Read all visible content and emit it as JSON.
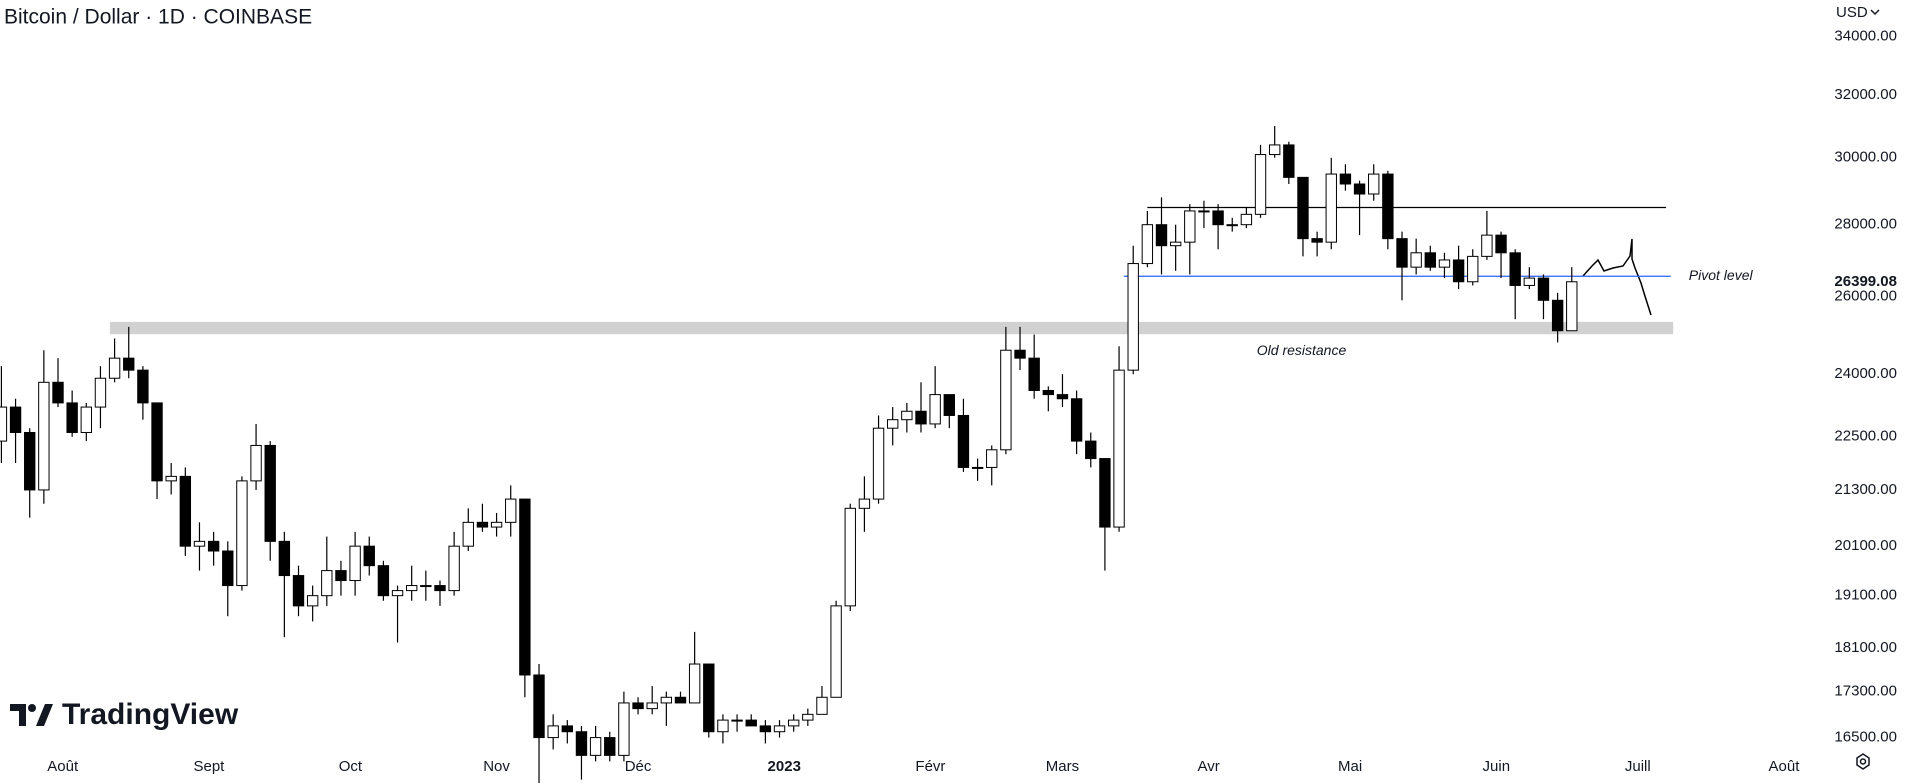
{
  "header": {
    "title": "Bitcoin / Dollar · 1D · COINBASE",
    "currency": "USD"
  },
  "brand": "TradingView",
  "chart_data": {
    "type": "candlestick",
    "log_scale": true,
    "up_color": "#ffffff",
    "down_color": "#000000",
    "wick_color": "#000000",
    "x": [
      0,
      3,
      6,
      9,
      12,
      15,
      18,
      21,
      24,
      27,
      30,
      33,
      36,
      39,
      42,
      45,
      48,
      51,
      54,
      57,
      60,
      63,
      66,
      69,
      72,
      75,
      78,
      81,
      84,
      87,
      90,
      93,
      96,
      99,
      102,
      105,
      108,
      111,
      114,
      117,
      120,
      123,
      126,
      129,
      132,
      135,
      138,
      141,
      144,
      147,
      150,
      153,
      156,
      159,
      162,
      165,
      168,
      171,
      174,
      177,
      180,
      183,
      186,
      189,
      192,
      195,
      198,
      201,
      204,
      207,
      210,
      213,
      216,
      219,
      222,
      225,
      228,
      231,
      234,
      237,
      240,
      243,
      246,
      249,
      252,
      255,
      258,
      261,
      264,
      267,
      270,
      273,
      276,
      279,
      282,
      285,
      288,
      291,
      294,
      297,
      300,
      303,
      306,
      309,
      312,
      315,
      318,
      321,
      324,
      327,
      330,
      333
    ],
    "open": [
      22400,
      23200,
      22600,
      21300,
      23800,
      23300,
      22600,
      23200,
      23900,
      24400,
      24100,
      23300,
      21500,
      21600,
      20100,
      20200,
      20000,
      19300,
      21500,
      22300,
      20200,
      19500,
      18900,
      19100,
      19600,
      19400,
      20100,
      19700,
      19100,
      19200,
      19300,
      19300,
      19200,
      20100,
      20600,
      20500,
      20600,
      21100,
      17600,
      16500,
      16700,
      16600,
      16200,
      16500,
      16200,
      17100,
      17000,
      17100,
      17200,
      17100,
      17800,
      16600,
      16800,
      16800,
      16700,
      16600,
      16700,
      16800,
      16900,
      17200,
      18900,
      20900,
      21100,
      22700,
      22900,
      23100,
      22800,
      23500,
      23000,
      21800,
      21800,
      22200,
      24600,
      24400,
      23600,
      23500,
      23400,
      22400,
      22000,
      20500,
      24100,
      26900,
      28000,
      27400,
      27500,
      28400,
      28400,
      28000,
      28000,
      28300,
      30100,
      30400,
      29400,
      27600,
      27500,
      29500,
      29200,
      28900,
      29500,
      27600,
      26800,
      27200,
      26800,
      27000,
      26400,
      27100,
      27700,
      27200,
      26300,
      26500,
      25900,
      25100
    ],
    "high": [
      24200,
      23400,
      22700,
      24600,
      24400,
      23600,
      23300,
      24200,
      24900,
      25200,
      24200,
      23300,
      21900,
      21800,
      20600,
      20400,
      20200,
      21600,
      22800,
      22400,
      20400,
      19700,
      19300,
      20300,
      19800,
      20400,
      20300,
      19800,
      19300,
      19700,
      19600,
      19400,
      20400,
      20900,
      21000,
      20800,
      21400,
      21100,
      17800,
      16900,
      16800,
      16700,
      16700,
      16600,
      17300,
      17200,
      17400,
      17300,
      17300,
      18400,
      17800,
      16900,
      16900,
      16900,
      16800,
      16800,
      16900,
      17000,
      17400,
      19000,
      21000,
      21600,
      23000,
      23200,
      23300,
      23800,
      24200,
      23500,
      23400,
      22000,
      22300,
      25200,
      25200,
      25000,
      23700,
      24000,
      23600,
      22600,
      22000,
      24700,
      27400,
      28400,
      28800,
      28000,
      28600,
      28700,
      28600,
      28200,
      28500,
      30400,
      31000,
      30500,
      29400,
      27800,
      30000,
      29800,
      29300,
      29800,
      29600,
      27800,
      27600,
      27400,
      27200,
      27400,
      27300,
      28400,
      27800,
      27300,
      26800,
      26600,
      26100,
      26800
    ],
    "low": [
      21900,
      21900,
      20700,
      21000,
      23200,
      22500,
      22400,
      22700,
      23800,
      23900,
      22900,
      21100,
      21200,
      19900,
      19600,
      19700,
      18700,
      19200,
      21300,
      19800,
      18300,
      18700,
      18600,
      18900,
      19100,
      19100,
      19500,
      19000,
      18200,
      19000,
      19000,
      18900,
      19100,
      20000,
      20400,
      20300,
      20300,
      17200,
      15700,
      16300,
      16400,
      15800,
      16100,
      16100,
      16100,
      16900,
      16900,
      16700,
      17100,
      17100,
      16500,
      16400,
      16600,
      16700,
      16400,
      16500,
      16600,
      16700,
      16900,
      17200,
      18800,
      20400,
      21000,
      22300,
      22600,
      22600,
      22700,
      22700,
      21700,
      21500,
      21400,
      22100,
      24100,
      23400,
      23100,
      23200,
      22100,
      21800,
      19600,
      20400,
      24000,
      26800,
      26600,
      26700,
      26600,
      27900,
      27300,
      27800,
      27900,
      28200,
      30000,
      29200,
      27100,
      27100,
      27300,
      29000,
      27700,
      28700,
      27300,
      25900,
      26600,
      26700,
      26500,
      26200,
      26300,
      27000,
      26500,
      25400,
      26200,
      25400,
      24800,
      25100
    ],
    "close": [
      23200,
      22600,
      21300,
      23800,
      23300,
      22600,
      23200,
      23900,
      24400,
      24100,
      23300,
      21500,
      21600,
      20100,
      20200,
      20000,
      19300,
      21500,
      22300,
      20200,
      19500,
      18900,
      19100,
      19600,
      19400,
      20100,
      19700,
      19100,
      19200,
      19300,
      19300,
      19200,
      20100,
      20600,
      20500,
      20600,
      21100,
      17600,
      16500,
      16700,
      16600,
      16200,
      16500,
      16200,
      17100,
      17000,
      17100,
      17200,
      17100,
      17800,
      16600,
      16800,
      16800,
      16700,
      16600,
      16700,
      16800,
      16900,
      17200,
      18900,
      20900,
      21100,
      22700,
      22900,
      23100,
      22800,
      23500,
      23000,
      21800,
      21800,
      22200,
      24600,
      24400,
      23600,
      23500,
      23400,
      22400,
      22000,
      20500,
      24100,
      26900,
      28000,
      27400,
      27500,
      28400,
      28400,
      28000,
      28000,
      28300,
      30100,
      30400,
      29400,
      27600,
      27500,
      29500,
      29200,
      28900,
      29500,
      27600,
      26800,
      27200,
      26800,
      27000,
      26400,
      27100,
      27700,
      27200,
      26300,
      26500,
      25900,
      25100,
      26400
    ],
    "xlim": [
      -0.3,
      385
    ],
    "xticks": [
      {
        "value": 13,
        "label": "Août"
      },
      {
        "value": 44,
        "label": "Sept"
      },
      {
        "value": 74,
        "label": "Oct"
      },
      {
        "value": 105,
        "label": "Nov"
      },
      {
        "value": 135,
        "label": "Déc"
      },
      {
        "value": 166,
        "label": "2023"
      },
      {
        "value": 197,
        "label": "Févr"
      },
      {
        "value": 225,
        "label": "Mars"
      },
      {
        "value": 256,
        "label": "Avr"
      },
      {
        "value": 286,
        "label": "Mai"
      },
      {
        "value": 317,
        "label": "Juin"
      },
      {
        "value": 347,
        "label": "Juill"
      },
      {
        "value": 378,
        "label": "Août"
      }
    ],
    "ylim": [
      16290,
      35300
    ],
    "yticks": [
      {
        "value": 34000,
        "label": "34000.00"
      },
      {
        "value": 32000,
        "label": "32000.00"
      },
      {
        "value": 30000,
        "label": "30000.00"
      },
      {
        "value": 28000,
        "label": "28000.00"
      },
      {
        "value": 26000,
        "label": "26000.00"
      },
      {
        "value": 24000,
        "label": "24000.00"
      },
      {
        "value": 22500,
        "label": "22500.00"
      },
      {
        "value": 21300,
        "label": "21300.00"
      },
      {
        "value": 20100,
        "label": "20100.00"
      },
      {
        "value": 19100,
        "label": "19100.00"
      },
      {
        "value": 18100,
        "label": "18100.00"
      },
      {
        "value": 17300,
        "label": "17300.00"
      },
      {
        "value": 16500,
        "label": "16500.00"
      }
    ],
    "last_price": 26399.08,
    "hlines": [
      {
        "value": 28500,
        "x": [
          243,
          353
        ],
        "color": "#000000"
      },
      {
        "label": "Pivot level",
        "value": 26550,
        "x": [
          238,
          354
        ],
        "color": "#2962ff"
      }
    ],
    "zones": [
      {
        "label": "Old resistance",
        "range": [
          25010,
          25330
        ],
        "x": [
          23,
          354.5
        ],
        "color": "#d1d1d1"
      }
    ]
  }
}
